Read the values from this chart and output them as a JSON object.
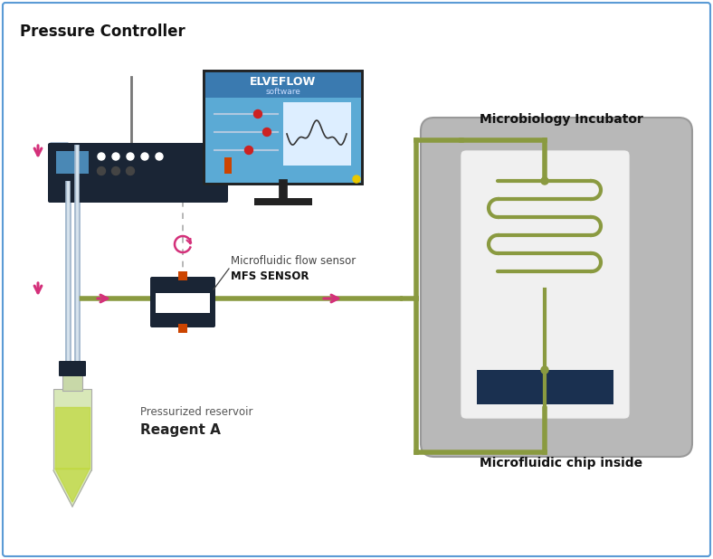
{
  "bg_color": "#ffffff",
  "border_color": "#5b9bd5",
  "title_pressure": "Pressure Controller",
  "title_mfs": "Microfluidic flow sensor",
  "title_mfs_bold": "MFS SENSOR",
  "title_incubator": "Microbiology Incubator",
  "title_chip": "Microfluidic chip inside",
  "title_reagent1": "Pressurized reservoir",
  "title_reagent2": "Reagent A",
  "elveflow_title": "ELVEFLOW",
  "elveflow_sub": "software",
  "tube_color": "#8a9a40",
  "pipe_color": "#a8bcd0",
  "pipe_highlight": "#d8e4ee",
  "dark_device": "#1a2535",
  "incubator_bg": "#b8b8b8",
  "chip_dark": "#1a3050",
  "arrow_color": "#d4307a",
  "screen_bg": "#5baad5",
  "orange_connector": "#cc4400",
  "dashed_color": "#aaaaaa",
  "chip_inner_bg": "#f0f0f0"
}
